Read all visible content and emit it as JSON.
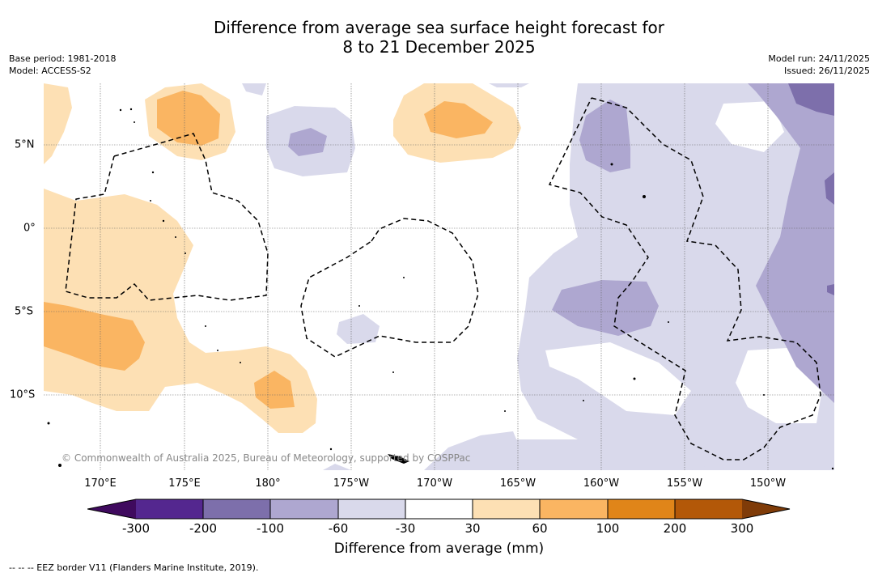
{
  "title_line1": "Difference from average sea surface height forecast for",
  "title_line2": "8 to 21 December 2025",
  "base_period": "Base period: 1981-2018",
  "model": "Model: ACCESS-S2",
  "model_run": "Model run: 24/11/2025",
  "issued": "Issued: 26/11/2025",
  "lon_labels": [
    "170°E",
    "175°E",
    "180°",
    "175°W",
    "170°W",
    "165°W",
    "160°W",
    "155°W",
    "150°W"
  ],
  "lat_labels": [
    "5°N",
    "0°",
    "5°S",
    "10°S"
  ],
  "copyright": "© Commonwealth of Australia 2025, Bureau of Meteorology, supported by COSPPac",
  "legend": {
    "title": "Difference from average (mm)",
    "ticks": [
      "-300",
      "-200",
      "-100",
      "-60",
      "-30",
      "30",
      "60",
      "100",
      "200",
      "300"
    ],
    "colors": [
      "#3f0a5e",
      "#54278f",
      "#7d6fab",
      "#aea7d0",
      "#d9d9eb",
      "#ffffff",
      "#fde0b4",
      "#fab562",
      "#e08519",
      "#b35808",
      "#7f3b08"
    ]
  },
  "footnote": "-- -- -- EEZ border V11 (Flanders Marine Institute, 2019)."
}
